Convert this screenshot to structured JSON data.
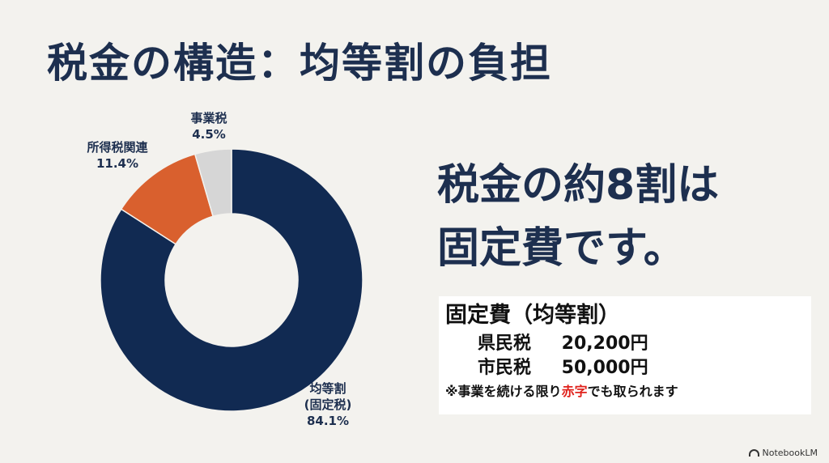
{
  "slide": {
    "title": "税金の構造：均等割の負担",
    "headline_line1": "税金の約8割は",
    "headline_line2": "固定費です。"
  },
  "chart_data": {
    "type": "pie",
    "donut": true,
    "slices": [
      {
        "name_lines": [
          "均等割",
          "(固定税)"
        ],
        "value": 84.1,
        "value_label": "84.1%",
        "color": "#112a52"
      },
      {
        "name_lines": [
          "所得税関連"
        ],
        "value": 11.4,
        "value_label": "11.4%",
        "color": "#d9602e"
      },
      {
        "name_lines": [
          "事業税"
        ],
        "value": 4.5,
        "value_label": "4.5%",
        "color": "#d6d6d6"
      }
    ]
  },
  "fixed_cost_box": {
    "title": "固定費（均等割）",
    "rows": [
      {
        "name": "県民税",
        "amount": "20,200円"
      },
      {
        "name": "市民税",
        "amount": "50,000円"
      }
    ],
    "note_before": "※事業を続ける限り",
    "note_highlight": "赤字",
    "note_after": "でも取られます",
    "highlight_color": "#e0221c"
  },
  "branding": {
    "logo_text": "NotebookLM",
    "logo_icon": "notebooklm-icon"
  }
}
